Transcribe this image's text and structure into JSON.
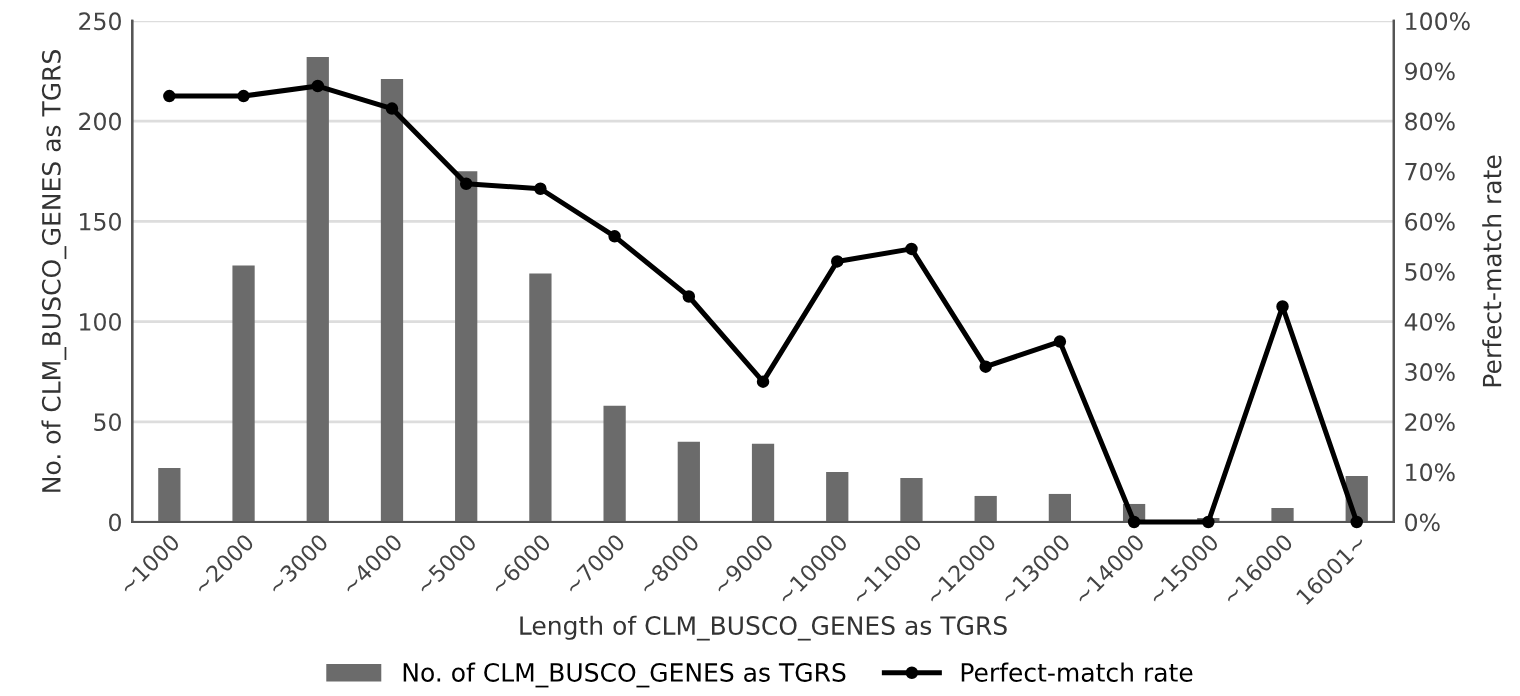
{
  "chart_data": {
    "type": "bar",
    "xlabel": "Length of CLM_BUSCO_GENES as TGRS",
    "ylabel": "No. of CLM_BUSCO_GENES as TGRS",
    "y2label": "Perfect-match rate",
    "categories": [
      "~1000",
      "~2000",
      "~3000",
      "~4000",
      "~5000",
      "~6000",
      "~7000",
      "~8000",
      "~9000",
      "~10000",
      "~11000",
      "~12000",
      "~13000",
      "~14000",
      "~15000",
      "~16000",
      "16001~"
    ],
    "series": [
      {
        "name": "No. of CLM_BUSCO_GENES as TGRS",
        "color": "#6b6b6b",
        "values": [
          27,
          128,
          232,
          221,
          175,
          124,
          58,
          40,
          39,
          25,
          22,
          13,
          14,
          9,
          2,
          7,
          23
        ]
      },
      {
        "name": "Perfect-match rate",
        "type": "line",
        "axis": "y2",
        "color": "#000000",
        "marker": "circle",
        "values": [
          85,
          85,
          87,
          82.5,
          67.5,
          66.5,
          57,
          45,
          28,
          52,
          54.5,
          31,
          36,
          0,
          0,
          43,
          0
        ]
      }
    ],
    "ylim": [
      0,
      250
    ],
    "yticks": [
      0,
      50,
      100,
      150,
      200,
      250
    ],
    "y2lim": [
      0,
      100
    ],
    "y2ticks": [
      {
        "value": 0,
        "label": "0%"
      },
      {
        "value": 10,
        "label": "10%"
      },
      {
        "value": 20,
        "label": "20%"
      },
      {
        "value": 30,
        "label": "30%"
      },
      {
        "value": 40,
        "label": "40%"
      },
      {
        "value": 50,
        "label": "50%"
      },
      {
        "value": 60,
        "label": "60%"
      },
      {
        "value": 70,
        "label": "70%"
      },
      {
        "value": 80,
        "label": "80%"
      },
      {
        "value": 90,
        "label": "90%"
      },
      {
        "value": 100,
        "label": "100%"
      }
    ],
    "grid": "y",
    "legend": "bottom"
  }
}
